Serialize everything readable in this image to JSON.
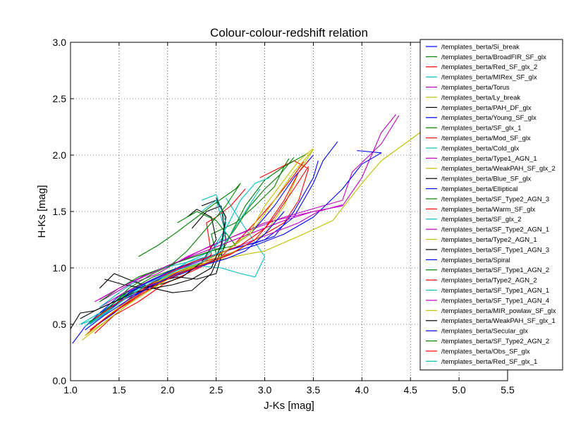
{
  "chart_data": {
    "type": "line",
    "title": "Colour-colour-redshift relation",
    "xlabel": "J-Ks [mag]",
    "ylabel": "H-Ks [mag]",
    "xlim": [
      1.0,
      5.5
    ],
    "ylim": [
      0.0,
      3.0
    ],
    "x_ticks": [
      1.0,
      1.5,
      2.0,
      2.5,
      3.0,
      3.5,
      4.0,
      4.5,
      5.0,
      5.5
    ],
    "x_tick_labels": [
      "1.0",
      "1.5",
      "2.0",
      "2.5",
      "3.0",
      "3.5",
      "4.0",
      "4.5",
      "5.0",
      "5.5"
    ],
    "y_ticks": [
      0.0,
      0.5,
      1.0,
      1.5,
      2.0,
      2.5,
      3.0
    ],
    "y_tick_labels": [
      "0.0",
      "0.5",
      "1.0",
      "1.5",
      "2.0",
      "2.5",
      "3.0"
    ],
    "grid": true,
    "legend_position": "upper-right",
    "series": [
      {
        "name": "/templates_berta/Si_break",
        "color": "#0000ff",
        "x": [
          1.02,
          1.15,
          1.3,
          1.5,
          1.75,
          2.0,
          2.3,
          2.6,
          3.0,
          3.3,
          3.5,
          3.6,
          3.75
        ],
        "y": [
          0.33,
          0.48,
          0.6,
          0.75,
          0.85,
          0.95,
          1.05,
          1.15,
          1.25,
          1.45,
          1.75,
          1.95,
          2.12
        ]
      },
      {
        "name": "/templates_berta/BroadFIR_SF_glx",
        "color": "#008000",
        "x": [
          1.2,
          1.4,
          1.6,
          1.9,
          2.1,
          2.3,
          2.5,
          2.45,
          2.7,
          2.9,
          3.1,
          3.2,
          3.25
        ],
        "y": [
          0.5,
          0.62,
          0.8,
          0.92,
          1.0,
          1.05,
          1.12,
          1.3,
          1.4,
          1.55,
          1.72,
          1.9,
          1.97
        ]
      },
      {
        "name": "/templates_berta/Red_SF_glx_2",
        "color": "#ff0000",
        "x": [
          1.25,
          1.45,
          1.7,
          1.95,
          2.2,
          2.45,
          2.7,
          2.9,
          3.2,
          3.35,
          3.45,
          3.3,
          2.95
        ],
        "y": [
          0.42,
          0.58,
          0.7,
          0.85,
          0.95,
          1.05,
          1.15,
          1.25,
          1.4,
          1.6,
          1.88,
          1.95,
          1.8
        ]
      },
      {
        "name": "/templates_berta/MIRex_SF_glx",
        "color": "#00bfbf",
        "x": [
          1.1,
          1.3,
          1.55,
          1.8,
          2.05,
          2.3,
          2.55,
          2.75,
          2.9,
          3.0,
          2.8,
          2.6
        ],
        "y": [
          0.5,
          0.56,
          0.72,
          0.85,
          0.95,
          1.02,
          1.0,
          0.95,
          0.92,
          1.1,
          1.35,
          1.62
        ]
      },
      {
        "name": "/templates_berta/Torus",
        "color": "#bf00bf",
        "x": [
          1.3,
          1.6,
          1.9,
          2.2,
          2.6,
          3.0,
          3.5,
          3.8,
          4.0,
          4.2,
          4.35
        ],
        "y": [
          0.7,
          0.85,
          0.95,
          1.1,
          1.25,
          1.4,
          1.5,
          1.55,
          1.8,
          2.2,
          2.36
        ]
      },
      {
        "name": "/templates_berta/Ly_break",
        "color": "#bfbf00",
        "x": [
          1.12,
          1.4,
          1.7,
          2.0,
          2.4,
          2.8,
          3.0,
          3.4,
          3.7,
          4.0,
          4.2,
          4.6
        ],
        "y": [
          0.36,
          0.55,
          0.75,
          0.9,
          1.05,
          1.12,
          1.15,
          1.3,
          1.42,
          1.75,
          1.95,
          2.2
        ]
      },
      {
        "name": "/templates_berta/PAH_DF_glx",
        "color": "#000000",
        "x": [
          1.0,
          1.1,
          1.25,
          1.5,
          1.7,
          1.9,
          2.1,
          2.3,
          2.5,
          2.6,
          2.55,
          2.4,
          2.25
        ],
        "y": [
          0.46,
          0.6,
          0.62,
          0.72,
          0.82,
          0.88,
          0.92,
          0.9,
          0.95,
          1.25,
          1.55,
          1.5,
          1.35
        ]
      },
      {
        "name": "/templates_berta/Young_SF_glx",
        "color": "#0000ff",
        "x": [
          1.2,
          1.45,
          1.7,
          1.95,
          2.2,
          2.45,
          2.7,
          2.9,
          3.1,
          3.3,
          3.5,
          3.55
        ],
        "y": [
          0.45,
          0.6,
          0.78,
          0.92,
          1.02,
          1.1,
          1.18,
          1.22,
          1.28,
          1.5,
          1.8,
          1.95
        ]
      },
      {
        "name": "/templates_berta/SF_glx_1",
        "color": "#008000",
        "x": [
          1.15,
          1.35,
          1.6,
          1.85,
          2.1,
          2.35,
          2.55,
          2.65,
          2.8,
          3.0,
          3.2,
          3.45
        ],
        "y": [
          0.48,
          0.62,
          0.8,
          0.92,
          1.0,
          1.08,
          1.12,
          1.3,
          1.55,
          1.78,
          1.9,
          2.02
        ]
      },
      {
        "name": "/templates_berta/Mod_SF_glx",
        "color": "#ff0000",
        "x": [
          1.2,
          1.4,
          1.65,
          1.9,
          2.15,
          2.35,
          2.55,
          2.7,
          2.9,
          3.1,
          3.3,
          3.4
        ],
        "y": [
          0.45,
          0.58,
          0.76,
          0.88,
          0.98,
          1.05,
          1.1,
          1.22,
          1.4,
          1.6,
          1.82,
          1.94
        ]
      },
      {
        "name": "/templates_berta/Cold_glx",
        "color": "#00bfbf",
        "x": [
          1.1,
          1.3,
          1.55,
          1.75,
          2.0,
          2.2,
          2.45,
          2.6,
          2.75,
          2.9,
          3.05
        ],
        "y": [
          0.5,
          0.6,
          0.75,
          0.86,
          0.95,
          1.05,
          1.15,
          1.35,
          1.6,
          1.75,
          1.8
        ]
      },
      {
        "name": "/templates_berta/Type1_AGN_1",
        "color": "#bf00bf",
        "x": [
          1.25,
          1.5,
          1.8,
          2.1,
          2.45,
          2.8,
          3.2,
          3.6,
          3.8,
          3.9,
          4.2,
          4.38
        ],
        "y": [
          0.7,
          0.82,
          0.95,
          1.05,
          1.2,
          1.32,
          1.45,
          1.55,
          1.6,
          1.85,
          2.1,
          2.35
        ]
      },
      {
        "name": "/templates_berta/WeakPAH_SF_glx_2",
        "color": "#bfbf00",
        "x": [
          1.2,
          1.45,
          1.75,
          2.05,
          2.35,
          2.6,
          2.85,
          3.0,
          3.2,
          3.35,
          3.5
        ],
        "y": [
          0.45,
          0.62,
          0.8,
          0.95,
          1.05,
          1.15,
          1.32,
          1.55,
          1.78,
          1.95,
          2.06
        ]
      },
      {
        "name": "/templates_berta/Blue_SF_glx",
        "color": "#000000",
        "x": [
          1.3,
          1.45,
          1.65,
          1.85,
          2.05,
          2.25,
          2.45,
          2.55,
          2.6,
          2.5,
          2.35
        ],
        "y": [
          0.82,
          0.95,
          0.88,
          0.82,
          0.78,
          0.8,
          0.95,
          1.15,
          1.45,
          1.6,
          1.55
        ]
      },
      {
        "name": "/templates_berta/Elliptical",
        "color": "#0000ff",
        "x": [
          1.3,
          1.5,
          1.75,
          2.0,
          2.3,
          2.6,
          2.9,
          3.2,
          3.5,
          3.8,
          4.0,
          4.2,
          3.95
        ],
        "y": [
          0.6,
          0.7,
          0.8,
          0.9,
          1.0,
          1.12,
          1.2,
          1.3,
          1.45,
          1.7,
          1.92,
          2.02,
          2.04
        ]
      },
      {
        "name": "/templates_berta/SF_Type2_AGN_3",
        "color": "#008000",
        "x": [
          1.2,
          1.4,
          1.6,
          1.85,
          2.1,
          2.35,
          2.55,
          2.7,
          2.85,
          3.0,
          3.15,
          3.3
        ],
        "y": [
          0.52,
          0.65,
          0.82,
          0.95,
          1.05,
          1.12,
          1.18,
          1.35,
          1.55,
          1.7,
          1.82,
          1.98
        ]
      },
      {
        "name": "/templates_berta/Warm_SF_glx",
        "color": "#ff0000",
        "x": [
          1.15,
          1.35,
          1.6,
          1.85,
          2.1,
          2.3,
          2.45,
          2.4,
          2.5,
          2.65,
          2.8
        ],
        "y": [
          0.4,
          0.55,
          0.7,
          0.85,
          0.95,
          1.0,
          1.12,
          1.4,
          1.45,
          1.55,
          1.7
        ]
      },
      {
        "name": "/templates_berta/SF_glx_2",
        "color": "#00bfbf",
        "x": [
          1.15,
          1.35,
          1.6,
          1.85,
          2.1,
          2.3,
          2.5,
          2.65,
          2.8,
          2.95
        ],
        "y": [
          0.48,
          0.6,
          0.76,
          0.9,
          0.98,
          1.05,
          1.12,
          1.3,
          1.5,
          1.7
        ]
      },
      {
        "name": "/templates_berta/SF_Type2_AGN_1",
        "color": "#bf00bf",
        "x": [
          1.3,
          1.55,
          1.85,
          2.15,
          2.45,
          2.75,
          3.05,
          3.35,
          3.55,
          3.8
        ],
        "y": [
          0.65,
          0.78,
          0.9,
          1.0,
          1.1,
          1.2,
          1.3,
          1.4,
          1.5,
          1.56
        ]
      },
      {
        "name": "/templates_berta/Type2_AGN_1",
        "color": "#bfbf00",
        "x": [
          1.25,
          1.5,
          1.8,
          2.1,
          2.4,
          2.7,
          3.0,
          3.2,
          3.35,
          3.5
        ],
        "y": [
          0.55,
          0.7,
          0.85,
          0.95,
          1.05,
          1.15,
          1.3,
          1.55,
          1.85,
          2.05
        ]
      },
      {
        "name": "/templates_berta/SF_Type1_AGN_3",
        "color": "#000000",
        "x": [
          1.35,
          1.55,
          1.75,
          1.95,
          2.15,
          2.35,
          2.5,
          2.45,
          2.3,
          2.2
        ],
        "y": [
          0.9,
          0.85,
          0.82,
          0.86,
          0.92,
          1.05,
          1.25,
          1.45,
          1.52,
          1.45
        ]
      },
      {
        "name": "/templates_berta/Spiral",
        "color": "#0000ff",
        "x": [
          1.2,
          1.4,
          1.6,
          1.85,
          2.1,
          2.35,
          2.6,
          2.85,
          3.1,
          3.3,
          3.5
        ],
        "y": [
          0.5,
          0.62,
          0.78,
          0.9,
          1.0,
          1.08,
          1.15,
          1.3,
          1.55,
          1.8,
          2.0
        ]
      },
      {
        "name": "/templates_berta/SF_Type1_AGN_2",
        "color": "#008000",
        "x": [
          1.3,
          1.5,
          1.7,
          1.95,
          2.2,
          2.45,
          2.7,
          2.5,
          2.3,
          2.1
        ],
        "y": [
          0.7,
          0.82,
          0.92,
          1.0,
          1.08,
          1.15,
          1.2,
          1.42,
          1.5,
          1.4
        ]
      },
      {
        "name": "/templates_berta/Type2_AGN_2",
        "color": "#ff0000",
        "x": [
          1.25,
          1.5,
          1.75,
          2.0,
          2.25,
          2.5,
          2.75,
          3.0,
          3.2,
          3.35,
          3.45
        ],
        "y": [
          0.55,
          0.7,
          0.82,
          0.95,
          1.05,
          1.12,
          1.2,
          1.35,
          1.6,
          1.85,
          1.95
        ]
      },
      {
        "name": "/templates_berta/SF_Type1_AGN_1",
        "color": "#00bfbf",
        "x": [
          1.3,
          1.5,
          1.7,
          1.95,
          2.2,
          2.4,
          2.6,
          2.5,
          2.35
        ],
        "y": [
          0.65,
          0.78,
          0.9,
          1.0,
          1.05,
          1.1,
          1.3,
          1.6,
          1.5
        ]
      },
      {
        "name": "/templates_berta/SF_Type1_AGN_4",
        "color": "#bf00bf",
        "x": [
          1.3,
          1.5,
          1.75,
          2.0,
          2.3,
          2.6,
          2.9,
          3.2,
          3.5,
          3.8
        ],
        "y": [
          0.72,
          0.82,
          0.92,
          1.02,
          1.12,
          1.22,
          1.32,
          1.42,
          1.5,
          1.55
        ]
      },
      {
        "name": "/templates_berta/MIR_powlaw_SF_glx",
        "color": "#bfbf00",
        "x": [
          1.15,
          1.35,
          1.6,
          1.85,
          2.1,
          2.35,
          2.6,
          2.85,
          3.1,
          3.3,
          3.5
        ],
        "y": [
          0.4,
          0.52,
          0.68,
          0.82,
          0.95,
          1.05,
          1.15,
          1.3,
          1.6,
          1.85,
          2.05
        ]
      },
      {
        "name": "/templates_berta/WeakPAH_SF_glx_1",
        "color": "#000000",
        "x": [
          1.1,
          1.25,
          1.45,
          1.65,
          1.85,
          2.05,
          2.25,
          2.45,
          2.55,
          2.6,
          2.5
        ],
        "y": [
          0.55,
          0.62,
          0.7,
          0.78,
          0.82,
          0.85,
          0.9,
          1.0,
          1.2,
          1.45,
          1.62
        ]
      },
      {
        "name": "/templates_berta/Secular_glx",
        "color": "#0000ff",
        "x": [
          1.15,
          1.35,
          1.6,
          1.85,
          2.1,
          2.35,
          2.6,
          2.8,
          3.0,
          3.2
        ],
        "y": [
          0.45,
          0.58,
          0.72,
          0.85,
          0.95,
          1.02,
          1.08,
          1.15,
          1.3,
          1.5
        ]
      },
      {
        "name": "/templates_berta/SF_Type2_AGN_2",
        "color": "#008000",
        "x": [
          1.7,
          1.9,
          2.1,
          2.3,
          2.5,
          2.7,
          2.75,
          2.6,
          2.4,
          2.2,
          2.0
        ],
        "y": [
          1.1,
          1.2,
          1.32,
          1.45,
          1.58,
          1.7,
          1.75,
          1.55,
          1.35,
          1.15,
          1.0
        ]
      },
      {
        "name": "/templates_berta/Obs_SF_glx",
        "color": "#ff0000",
        "x": [
          1.2,
          1.4,
          1.65,
          1.9,
          2.15,
          2.4,
          2.65,
          2.9,
          3.1,
          3.3,
          3.45
        ],
        "y": [
          0.45,
          0.58,
          0.72,
          0.86,
          0.96,
          1.04,
          1.12,
          1.25,
          1.45,
          1.7,
          1.9
        ]
      },
      {
        "name": "/templates_berta/Red_SF_glx_1",
        "color": "#00bfbf",
        "x": [
          1.2,
          1.4,
          1.6,
          1.85,
          2.1,
          2.35,
          2.55,
          2.6,
          2.5,
          2.35
        ],
        "y": [
          0.5,
          0.62,
          0.75,
          0.88,
          0.98,
          1.05,
          1.15,
          1.4,
          1.65,
          1.6
        ]
      }
    ]
  }
}
